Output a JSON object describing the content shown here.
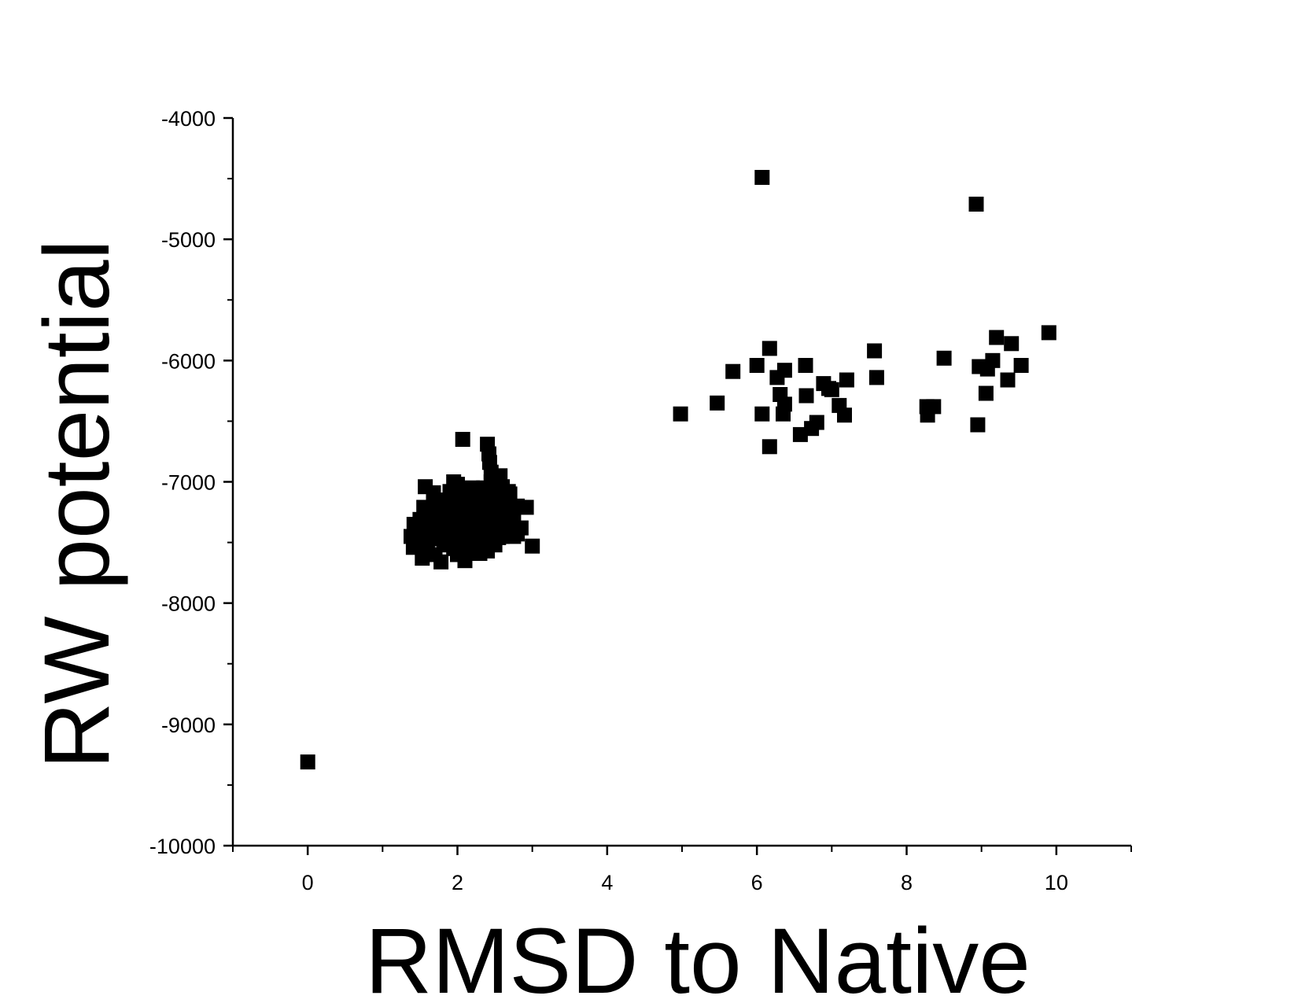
{
  "chart_data": {
    "type": "scatter",
    "title": "",
    "xlabel": "RMSD to Native",
    "ylabel": "RW potential",
    "xlim": [
      -1,
      11
    ],
    "ylim": [
      -10000,
      -4000
    ],
    "x_ticks": [
      0,
      2,
      4,
      6,
      8,
      10
    ],
    "x_tick_labels": [
      "0",
      "2",
      "4",
      "6",
      "8",
      "10"
    ],
    "y_ticks": [
      -10000,
      -9000,
      -8000,
      -7000,
      -6000,
      -5000,
      -4000
    ],
    "y_tick_labels": [
      "-10000",
      "-9000",
      "-8000",
      "-7000",
      "-6000",
      "-5000",
      "-4000"
    ],
    "grid": false,
    "marker": "square",
    "marker_color": "#000000",
    "series": [
      {
        "points": [
          [
            0.0,
            -9310
          ],
          [
            6.07,
            -4490
          ],
          [
            8.93,
            -4710
          ],
          [
            4.98,
            -6440
          ],
          [
            5.47,
            -6350
          ],
          [
            5.68,
            -6090
          ],
          [
            6.0,
            -6040
          ],
          [
            6.07,
            -6440
          ],
          [
            6.17,
            -5900
          ],
          [
            6.17,
            -6710
          ],
          [
            6.27,
            -6140
          ],
          [
            6.31,
            -6280
          ],
          [
            6.35,
            -6440
          ],
          [
            6.37,
            -6360
          ],
          [
            6.37,
            -6080
          ],
          [
            6.58,
            -6610
          ],
          [
            6.65,
            -6040
          ],
          [
            6.66,
            -6290
          ],
          [
            6.73,
            -6560
          ],
          [
            6.8,
            -6510
          ],
          [
            6.89,
            -6190
          ],
          [
            6.96,
            -6230
          ],
          [
            7.0,
            -6240
          ],
          [
            7.1,
            -6370
          ],
          [
            7.17,
            -6450
          ],
          [
            7.2,
            -6160
          ],
          [
            7.57,
            -5920
          ],
          [
            7.6,
            -6140
          ],
          [
            8.27,
            -6380
          ],
          [
            8.28,
            -6450
          ],
          [
            8.36,
            -6380
          ],
          [
            8.5,
            -5980
          ],
          [
            8.95,
            -6530
          ],
          [
            8.97,
            -6050
          ],
          [
            9.06,
            -6270
          ],
          [
            9.08,
            -6070
          ],
          [
            9.15,
            -6000
          ],
          [
            9.2,
            -5810
          ],
          [
            9.35,
            -6160
          ],
          [
            9.4,
            -5860
          ],
          [
            9.53,
            -6040
          ],
          [
            9.9,
            -5770
          ],
          [
            2.07,
            -6650
          ],
          [
            2.4,
            -6690
          ],
          [
            2.42,
            -6770
          ],
          [
            2.43,
            -6840
          ],
          [
            2.45,
            -6920
          ],
          [
            2.48,
            -6980
          ],
          [
            3.0,
            -7530
          ],
          [
            2.92,
            -7210
          ],
          [
            2.8,
            -7430
          ],
          [
            2.75,
            -7290
          ],
          [
            2.68,
            -7080
          ],
          [
            2.6,
            -7040
          ],
          [
            2.62,
            -7150
          ],
          [
            2.55,
            -7010
          ],
          [
            1.57,
            -7040
          ],
          [
            1.95,
            -7000
          ],
          [
            2.0,
            -7020
          ],
          [
            1.68,
            -7090
          ],
          [
            1.72,
            -7180
          ],
          [
            1.55,
            -7210
          ],
          [
            1.5,
            -7310
          ],
          [
            1.42,
            -7350
          ],
          [
            1.38,
            -7450
          ],
          [
            1.41,
            -7540
          ],
          [
            1.53,
            -7630
          ],
          [
            1.78,
            -7660
          ],
          [
            2.1,
            -7650
          ],
          [
            2.15,
            -7590
          ],
          [
            2.3,
            -7590
          ],
          [
            2.4,
            -7570
          ],
          [
            2.5,
            -7520
          ],
          [
            2.55,
            -7460
          ],
          [
            2.65,
            -7400
          ],
          [
            2.7,
            -7350
          ],
          [
            2.85,
            -7380
          ],
          [
            1.6,
            -7540
          ],
          [
            1.7,
            -7470
          ],
          [
            1.75,
            -7350
          ],
          [
            1.8,
            -7250
          ],
          [
            1.85,
            -7150
          ],
          [
            1.9,
            -7080
          ],
          [
            1.9,
            -7420
          ],
          [
            1.95,
            -7550
          ],
          [
            2.0,
            -7300
          ],
          [
            2.05,
            -7200
          ],
          [
            2.1,
            -7100
          ],
          [
            2.1,
            -7400
          ],
          [
            2.15,
            -7480
          ],
          [
            2.2,
            -7250
          ],
          [
            2.2,
            -7050
          ],
          [
            2.25,
            -7350
          ],
          [
            2.3,
            -7150
          ],
          [
            2.3,
            -7450
          ],
          [
            2.35,
            -7280
          ],
          [
            2.35,
            -7050
          ],
          [
            2.4,
            -7200
          ],
          [
            2.4,
            -7380
          ],
          [
            2.45,
            -7100
          ],
          [
            2.45,
            -7300
          ],
          [
            2.5,
            -7220
          ],
          [
            2.5,
            -7400
          ],
          [
            2.55,
            -7150
          ],
          [
            2.6,
            -7300
          ],
          [
            2.6,
            -7450
          ],
          [
            2.65,
            -7200
          ],
          [
            2.7,
            -7100
          ],
          [
            2.75,
            -7450
          ],
          [
            2.8,
            -7200
          ],
          [
            1.65,
            -7350
          ],
          [
            1.65,
            -7250
          ],
          [
            1.82,
            -7520
          ],
          [
            1.88,
            -7320
          ],
          [
            1.95,
            -7200
          ],
          [
            2.02,
            -7450
          ],
          [
            2.08,
            -7530
          ],
          [
            2.12,
            -7300
          ],
          [
            2.18,
            -7400
          ],
          [
            2.22,
            -7500
          ],
          [
            2.28,
            -7250
          ],
          [
            2.32,
            -7350
          ],
          [
            2.38,
            -7480
          ],
          [
            2.42,
            -7150
          ],
          [
            2.48,
            -7350
          ],
          [
            2.52,
            -7300
          ],
          [
            2.58,
            -7380
          ],
          [
            2.62,
            -7250
          ],
          [
            2.68,
            -7320
          ],
          [
            2.72,
            -7250
          ],
          [
            1.6,
            -7430
          ],
          [
            1.7,
            -7600
          ],
          [
            2.0,
            -7600
          ],
          [
            2.25,
            -7550
          ],
          [
            2.5,
            -7100
          ],
          [
            2.57,
            -6950
          ],
          [
            2.45,
            -7000
          ],
          [
            1.98,
            -7100
          ],
          [
            2.05,
            -7350
          ],
          [
            2.15,
            -7150
          ],
          [
            2.25,
            -7180
          ],
          [
            2.35,
            -7420
          ],
          [
            2.4,
            -7260
          ],
          [
            1.78,
            -7400
          ],
          [
            1.85,
            -7460
          ],
          [
            1.9,
            -7270
          ],
          [
            2.0,
            -7400
          ],
          [
            2.12,
            -7220
          ],
          [
            2.18,
            -7330
          ],
          [
            2.28,
            -7420
          ],
          [
            2.38,
            -7320
          ],
          [
            2.55,
            -7250
          ],
          [
            2.62,
            -7350
          ],
          [
            2.7,
            -7400
          ],
          [
            1.5,
            -7450
          ],
          [
            1.58,
            -7320
          ]
        ]
      }
    ]
  }
}
